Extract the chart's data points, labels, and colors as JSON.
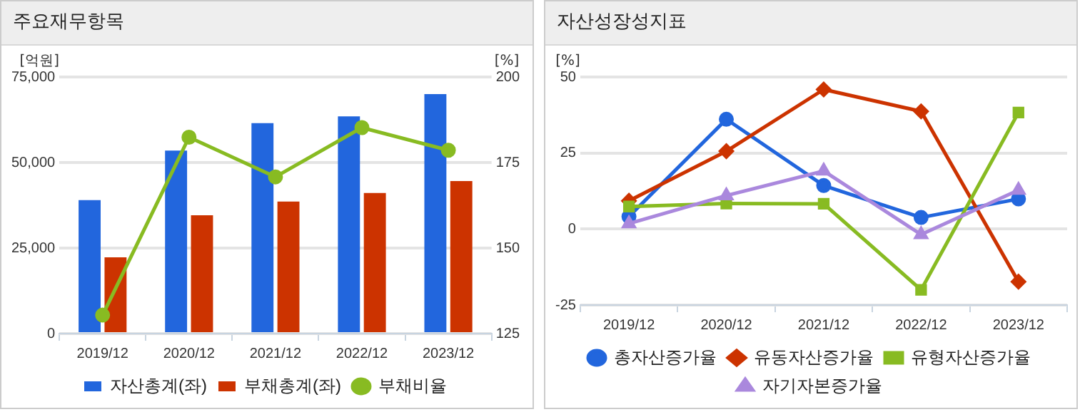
{
  "chart_data": [
    {
      "type": "bar",
      "title": "주요재무항목",
      "ylabel": "[억원]",
      "y2label": "[%]",
      "categories": [
        "2019/12",
        "2020/12",
        "2021/12",
        "2022/12",
        "2023/12"
      ],
      "series": [
        {
          "name": "자산총계(좌)",
          "color": "#2266dd",
          "values": [
            39000,
            53500,
            61500,
            63500,
            70000
          ]
        },
        {
          "name": "부채총계(좌)",
          "color": "#cc3300",
          "values": [
            22300,
            34600,
            38600,
            41100,
            44600
          ]
        },
        {
          "name": "부채비율",
          "type": "line",
          "axis": "y2",
          "color": "#88bb22",
          "marker": "circle",
          "values": [
            130.4,
            182.4,
            170.8,
            185.2,
            178.6
          ]
        }
      ],
      "ylim": [
        0,
        75000
      ],
      "yticks": [
        0,
        {
          "value": 25000,
          "label": "25,000"
        },
        {
          "value": 50000,
          "label": "50,000"
        },
        {
          "value": 75000,
          "label": "75,000"
        }
      ],
      "y2lim": [
        125,
        200
      ],
      "y2ticks": [
        125,
        150,
        175,
        200
      ],
      "grid": "y",
      "legend": "bottom"
    },
    {
      "type": "line",
      "title": "자산성장성지표",
      "ylabel": "[%]",
      "categories": [
        "2019/12",
        "2020/12",
        "2021/12",
        "2022/12",
        "2023/12"
      ],
      "series": [
        {
          "name": "총자산증가율",
          "color": "#2266dd",
          "marker": "circle",
          "values": [
            4.1,
            36.1,
            14.3,
            3.8,
            9.9
          ]
        },
        {
          "name": "유동자산증가율",
          "color": "#cc3300",
          "marker": "diamond",
          "values": [
            9.3,
            25.6,
            45.9,
            38.7,
            -17.3
          ]
        },
        {
          "name": "유형자산증가율",
          "color": "#88bb22",
          "marker": "square",
          "values": [
            7.4,
            8.4,
            8.3,
            -20.0,
            38.3
          ]
        },
        {
          "name": "자기자본증가율",
          "color": "#aa88dd",
          "marker": "triangle",
          "values": [
            1.8,
            11.0,
            19.1,
            -1.8,
            12.8
          ]
        }
      ],
      "ylim": [
        -25,
        50
      ],
      "yticks": [
        -25,
        0,
        25,
        50
      ],
      "grid": "y",
      "legend": "bottom"
    }
  ]
}
